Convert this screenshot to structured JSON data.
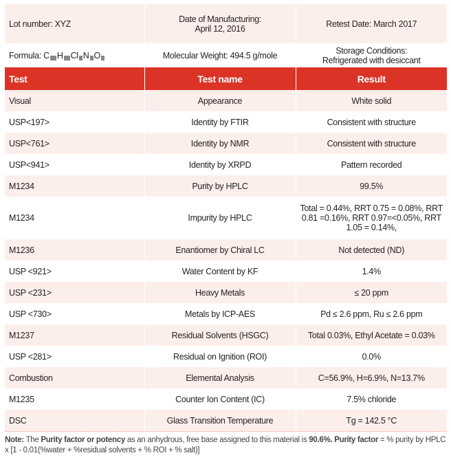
{
  "info": {
    "lot": "Lot number: XYZ",
    "manufacturing_label": "Date of Manufacturing:",
    "manufacturing_date": "April 12, 2016",
    "retest": "Retest Date: March 2017",
    "formula_label": "Formula:",
    "formula_elements": [
      "C",
      "H",
      "Cl",
      "N",
      "O"
    ],
    "molecular_weight": "Molecular Weight: 494.5 g/mole",
    "storage_label": "Storage Conditions:",
    "storage_value": "Refrigerated with desiccant"
  },
  "headers": [
    "Test",
    "Test name",
    "Result"
  ],
  "rows": [
    [
      "Visual",
      "Appearance",
      "White solid"
    ],
    [
      "USP<197>",
      "Identity by FTIR",
      "Consistent with structure"
    ],
    [
      "USP<761>",
      "Identity by NMR",
      "Consistent with structure"
    ],
    [
      "USP<941>",
      "Identity by XRPD",
      "Pattern recorded"
    ],
    [
      "M1234",
      "Purity by HPLC",
      "99.5%"
    ],
    [
      "M1234",
      "Impurity by HPLC",
      "Total = 0.44%, RRT 0.75 = 0.08%, RRT 0.81 =0.16%, RRT 0.97=<0.05%, RRT 1.05 = 0.14%,"
    ],
    [
      "M1236",
      "Enantiomer by Chiral LC",
      "Not detected (ND)"
    ],
    [
      "USP <921>",
      "Water Content by KF",
      "1.4%"
    ],
    [
      "USP <231>",
      "Heavy Metals",
      "≤ 20 ppm"
    ],
    [
      "USP <730>",
      "Metals by ICP-AES",
      "Pd ≤ 2.6 ppm, Ru ≤ 2.6 ppm"
    ],
    [
      "M1237",
      "Residual Solvents (HSGC)",
      "Total 0.03%, Ethyl Acetate = 0.03%"
    ],
    [
      "USP <281>",
      "Residual on Ignition (ROI)",
      "0.0%"
    ],
    [
      "Combustion",
      "Elemental Analysis",
      "C=56.9%, H=6.9%, N=13.7%"
    ],
    [
      "M1235",
      "Counter Ion Content (IC)",
      "7.5% chloride"
    ],
    [
      "DSC",
      "Glass Transition Temperature",
      "Tg = 142.5 °C"
    ]
  ],
  "note": {
    "label": "Note:",
    "t1": " The ",
    "b1": "Purity factor or potency",
    "t2": " as an anhydrous, free base assigned to this material is ",
    "b2": "90.6%.",
    "t3": " ",
    "b3": "Purity factor",
    "t4": " = % purity by HPLC x [1 - 0.01(%water + %residual solvents + % ROI + % salt)]"
  },
  "colors": {
    "header": "#db3427",
    "row_tint": "#fcefeb"
  }
}
